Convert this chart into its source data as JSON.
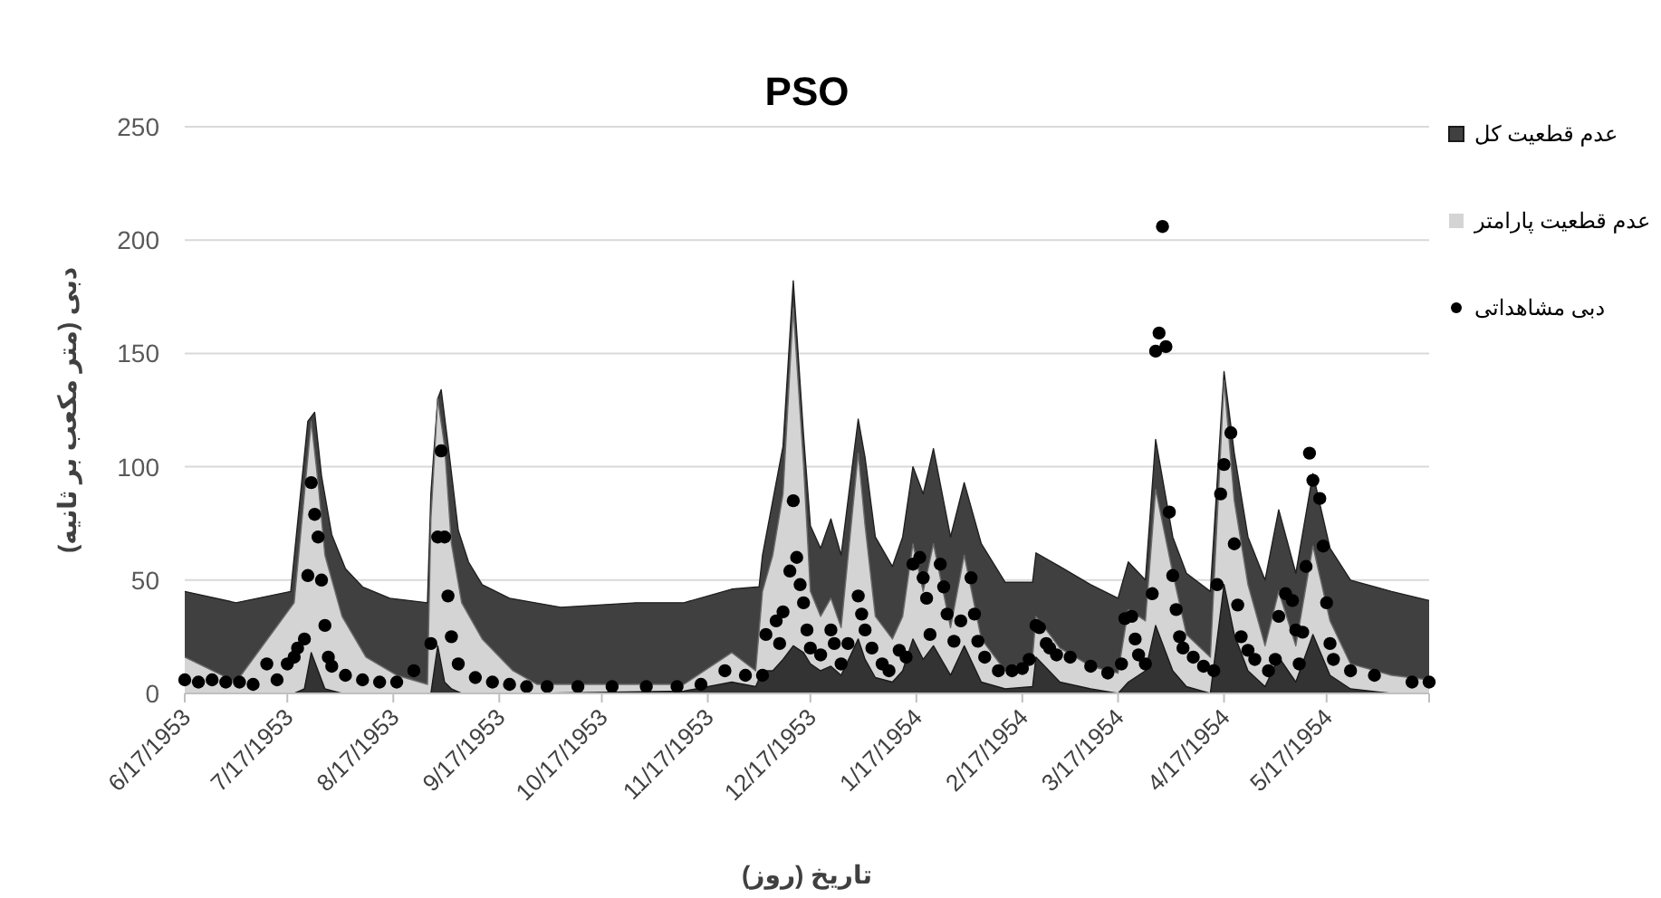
{
  "chart_data": {
    "type": "area",
    "title": "PSO",
    "xlabel": "تاریخ (روز)",
    "ylabel": "دبی (متر مکعب بر ثانیه)",
    "xlim": [
      "1953-06-17",
      "1954-06-16"
    ],
    "ylim": [
      0,
      250
    ],
    "yticks": [
      0,
      50,
      100,
      150,
      200,
      250
    ],
    "xticks": [
      {
        "value": "1953-06-17",
        "label": "6/17/1953"
      },
      {
        "value": "1953-07-17",
        "label": "7/17/1953"
      },
      {
        "value": "1953-08-17",
        "label": "8/17/1953"
      },
      {
        "value": "1953-09-17",
        "label": "9/17/1953"
      },
      {
        "value": "1953-10-17",
        "label": "10/17/1953"
      },
      {
        "value": "1953-11-17",
        "label": "11/17/1953"
      },
      {
        "value": "1953-12-17",
        "label": "12/17/1953"
      },
      {
        "value": "1954-01-17",
        "label": "1/17/1954"
      },
      {
        "value": "1954-02-17",
        "label": "2/17/1954"
      },
      {
        "value": "1954-03-17",
        "label": "3/17/1954"
      },
      {
        "value": "1954-04-17",
        "label": "4/17/1954"
      },
      {
        "value": "1954-05-17",
        "label": "5/17/1954"
      }
    ],
    "grid": "y",
    "legend": "right",
    "series": [
      {
        "name": "عدم قطعیت کل",
        "color": "#404040",
        "x": [
          "1953-06-17",
          "1953-07-02",
          "1953-07-18",
          "1953-07-21",
          "1953-07-23",
          "1953-07-25",
          "1953-07-26",
          "1953-07-27",
          "1953-07-30",
          "1953-08-03",
          "1953-08-08",
          "1953-08-16",
          "1953-08-27",
          "1953-08-28",
          "1953-08-30",
          "1953-08-31",
          "1953-09-02",
          "1953-09-05",
          "1953-09-08",
          "1953-09-12",
          "1953-09-20",
          "1953-10-05",
          "1953-10-27",
          "1953-11-10",
          "1953-11-24",
          "1953-12-02",
          "1953-12-03",
          "1953-12-06",
          "1953-12-09",
          "1953-12-12",
          "1953-12-15",
          "1953-12-17",
          "1953-12-20",
          "1953-12-23",
          "1953-12-26",
          "1953-12-31",
          "1954-01-02",
          "1954-01-05",
          "1954-01-10",
          "1954-01-13",
          "1954-01-16",
          "1954-01-19",
          "1954-01-22",
          "1954-01-27",
          "1954-01-31",
          "1954-02-05",
          "1954-02-12",
          "1954-02-20",
          "1954-02-21",
          "1954-02-28",
          "1954-03-09",
          "1954-03-17",
          "1954-03-20",
          "1954-03-25",
          "1954-03-28",
          "1954-04-02",
          "1954-04-06",
          "1954-04-13",
          "1954-04-17",
          "1954-04-20",
          "1954-04-24",
          "1954-04-29",
          "1954-05-03",
          "1954-05-08",
          "1954-05-13",
          "1954-05-18",
          "1954-05-24",
          "1954-06-05",
          "1954-06-16"
        ],
        "values": [
          45,
          40,
          45,
          90,
          120,
          124,
          110,
          96,
          70,
          55,
          47,
          42,
          40,
          88,
          130,
          134,
          110,
          72,
          58,
          48,
          42,
          38,
          40,
          40,
          46,
          47,
          61,
          85,
          109,
          182,
          114,
          74,
          64,
          77,
          61,
          121,
          104,
          69,
          56,
          69,
          100,
          88,
          108,
          69,
          93,
          66,
          49,
          49,
          62,
          56,
          48,
          42,
          58,
          50,
          112,
          69,
          53,
          45,
          142,
          106,
          69,
          50,
          81,
          53,
          97,
          64,
          50,
          45,
          41
        ]
      },
      {
        "name": "عدم قطعیت پارامتر",
        "color": "#d4d4d4",
        "x": [
          "1953-06-17",
          "1953-07-02",
          "1953-07-19",
          "1953-07-22",
          "1953-07-24",
          "1953-07-26",
          "1953-07-28",
          "1953-08-02",
          "1953-08-09",
          "1953-08-18",
          "1953-08-27",
          "1953-08-28",
          "1953-08-30",
          "1953-09-01",
          "1953-09-03",
          "1953-09-06",
          "1953-09-12",
          "1953-09-21",
          "1953-09-28",
          "1953-11-10",
          "1953-11-24",
          "1953-12-01",
          "1953-12-03",
          "1953-12-06",
          "1953-12-09",
          "1953-12-12",
          "1953-12-15",
          "1953-12-17",
          "1953-12-20",
          "1953-12-23",
          "1953-12-26",
          "1953-12-31",
          "1954-01-02",
          "1954-01-05",
          "1954-01-10",
          "1954-01-13",
          "1954-01-16",
          "1954-01-19",
          "1954-01-22",
          "1954-01-27",
          "1954-01-31",
          "1954-02-05",
          "1954-02-12",
          "1954-02-20",
          "1954-02-21",
          "1954-02-28",
          "1954-03-09",
          "1954-03-17",
          "1954-03-20",
          "1954-03-25",
          "1954-03-28",
          "1954-04-02",
          "1954-04-06",
          "1954-04-13",
          "1954-04-17",
          "1954-04-20",
          "1954-04-24",
          "1954-04-29",
          "1954-05-03",
          "1954-05-08",
          "1954-05-13",
          "1954-05-18",
          "1954-05-24",
          "1954-06-05",
          "1954-06-16"
        ],
        "values": [
          16,
          5,
          40,
          88,
          120,
          93,
          61,
          34,
          16,
          8,
          4,
          77,
          130,
          109,
          66,
          40,
          24,
          10,
          4,
          4,
          18,
          10,
          45,
          61,
          88,
          170,
          101,
          45,
          34,
          42,
          29,
          106,
          74,
          34,
          24,
          34,
          66,
          45,
          66,
          29,
          61,
          24,
          10,
          16,
          34,
          20,
          12,
          9,
          37,
          32,
          90,
          53,
          26,
          16,
          138,
          85,
          48,
          21,
          45,
          21,
          65,
          32,
          13,
          8,
          6
        ]
      },
      {
        "color": "#333333",
        "x": [
          "1953-06-17",
          "1953-07-02",
          "1953-07-19",
          "1953-07-22",
          "1953-07-24",
          "1953-07-26",
          "1953-07-28",
          "1953-08-02",
          "1953-08-09",
          "1953-08-18",
          "1953-08-27",
          "1953-08-28",
          "1953-08-30",
          "1953-09-01",
          "1953-09-03",
          "1953-09-06",
          "1953-09-12",
          "1953-09-21",
          "1953-09-28",
          "1953-11-10",
          "1953-11-24",
          "1953-12-01",
          "1953-12-03",
          "1953-12-06",
          "1953-12-09",
          "1953-12-12",
          "1953-12-15",
          "1953-12-17",
          "1953-12-20",
          "1953-12-23",
          "1953-12-26",
          "1953-12-31",
          "1954-01-02",
          "1954-01-05",
          "1954-01-10",
          "1954-01-13",
          "1954-01-16",
          "1954-01-19",
          "1954-01-22",
          "1954-01-27",
          "1954-01-31",
          "1954-02-05",
          "1954-02-12",
          "1954-02-20",
          "1954-02-21",
          "1954-02-28",
          "1954-03-09",
          "1954-03-17",
          "1954-03-20",
          "1954-03-25",
          "1954-03-28",
          "1954-04-02",
          "1954-04-06",
          "1954-04-13",
          "1954-04-17",
          "1954-04-20",
          "1954-04-24",
          "1954-04-29",
          "1954-05-03",
          "1954-05-08",
          "1954-05-13",
          "1954-05-18",
          "1954-05-24",
          "1954-06-05",
          "1954-06-16"
        ],
        "values": [
          0,
          0,
          0,
          2,
          18,
          10,
          2,
          0,
          0,
          0,
          0,
          0,
          21,
          5,
          2,
          0,
          0,
          0,
          0,
          1,
          5,
          3,
          10,
          10,
          15,
          21,
          18,
          13,
          10,
          12,
          8,
          24,
          15,
          7,
          5,
          10,
          24,
          15,
          21,
          8,
          21,
          5,
          2,
          3,
          16,
          5,
          2,
          0,
          5,
          10,
          30,
          10,
          3,
          0,
          48,
          26,
          10,
          3,
          16,
          5,
          26,
          8,
          2,
          0,
          0
        ]
      },
      {
        "name": "دبی مشاهداتی",
        "type": "scatter",
        "color": "#000000",
        "marker": "circle",
        "x": [
          "1953-06-17",
          "1953-06-21",
          "1953-06-25",
          "1953-06-29",
          "1953-07-03",
          "1953-07-07",
          "1953-07-11",
          "1953-07-14",
          "1953-07-17",
          "1953-07-19",
          "1953-07-20",
          "1953-07-22",
          "1953-07-23",
          "1953-07-24",
          "1953-07-25",
          "1953-07-26",
          "1953-07-27",
          "1953-07-28",
          "1953-07-29",
          "1953-07-30",
          "1953-08-03",
          "1953-08-08",
          "1953-08-13",
          "1953-08-18",
          "1953-08-23",
          "1953-08-28",
          "1953-08-30",
          "1953-08-31",
          "1953-09-01",
          "1953-09-02",
          "1953-09-03",
          "1953-09-05",
          "1953-09-10",
          "1953-09-15",
          "1953-09-20",
          "1953-09-25",
          "1953-10-01",
          "1953-10-10",
          "1953-10-20",
          "1953-10-30",
          "1953-11-08",
          "1953-11-15",
          "1953-11-22",
          "1953-11-28",
          "1953-12-03",
          "1953-12-04",
          "1953-12-07",
          "1953-12-08",
          "1953-12-09",
          "1953-12-11",
          "1953-12-12",
          "1953-12-13",
          "1953-12-14",
          "1953-12-15",
          "1953-12-16",
          "1953-12-17",
          "1953-12-20",
          "1953-12-23",
          "1953-12-24",
          "1953-12-26",
          "1953-12-28",
          "1953-12-31",
          "1954-01-01",
          "1954-01-02",
          "1954-01-04",
          "1954-01-07",
          "1954-01-09",
          "1954-01-12",
          "1954-01-14",
          "1954-01-16",
          "1954-01-18",
          "1954-01-19",
          "1954-01-20",
          "1954-01-21",
          "1954-01-24",
          "1954-01-25",
          "1954-01-26",
          "1954-01-28",
          "1954-01-30",
          "1954-02-02",
          "1954-02-03",
          "1954-02-04",
          "1954-02-06",
          "1954-02-10",
          "1954-02-14",
          "1954-02-17",
          "1954-02-19",
          "1954-02-21",
          "1954-02-22",
          "1954-02-24",
          "1954-02-25",
          "1954-02-27",
          "1954-03-03",
          "1954-03-09",
          "1954-03-14",
          "1954-03-18",
          "1954-03-19",
          "1954-03-21",
          "1954-03-22",
          "1954-03-23",
          "1954-03-25",
          "1954-03-27",
          "1954-03-28",
          "1954-03-29",
          "1954-03-30",
          "1954-03-31",
          "1954-04-01",
          "1954-04-02",
          "1954-04-03",
          "1954-04-04",
          "1954-04-05",
          "1954-04-08",
          "1954-04-11",
          "1954-04-14",
          "1954-04-15",
          "1954-04-16",
          "1954-04-17",
          "1954-04-19",
          "1954-04-20",
          "1954-04-21",
          "1954-04-22",
          "1954-04-24",
          "1954-04-26",
          "1954-04-30",
          "1954-05-02",
          "1954-05-03",
          "1954-05-05",
          "1954-05-07",
          "1954-05-08",
          "1954-05-09",
          "1954-05-10",
          "1954-05-11",
          "1954-05-12",
          "1954-05-13",
          "1954-05-15",
          "1954-05-16",
          "1954-05-17",
          "1954-05-18",
          "1954-05-19",
          "1954-05-24",
          "1954-05-31",
          "1954-06-11",
          "1954-06-16"
        ],
        "values": [
          6,
          5,
          6,
          5,
          5,
          4,
          13,
          6,
          13,
          16,
          20,
          24,
          52,
          93,
          79,
          69,
          50,
          30,
          16,
          12,
          8,
          6,
          5,
          5,
          10,
          22,
          69,
          107,
          69,
          43,
          25,
          13,
          7,
          5,
          4,
          3,
          3,
          3,
          3,
          3,
          3,
          4,
          10,
          8,
          8,
          26,
          32,
          22,
          36,
          54,
          85,
          60,
          48,
          40,
          28,
          20,
          17,
          28,
          22,
          13,
          22,
          43,
          35,
          28,
          20,
          13,
          10,
          19,
          16,
          57,
          60,
          51,
          42,
          26,
          57,
          47,
          35,
          23,
          32,
          51,
          35,
          23,
          16,
          10,
          10,
          11,
          15,
          30,
          29,
          22,
          20,
          17,
          16,
          12,
          9,
          13,
          33,
          34,
          24,
          17,
          13,
          44,
          151,
          159,
          206,
          153,
          80,
          52,
          37,
          25,
          20,
          16,
          12,
          10,
          48,
          88,
          101,
          115,
          66,
          39,
          25,
          19,
          15,
          10,
          15,
          34,
          44,
          41,
          28,
          13,
          27,
          56,
          106,
          94,
          86,
          65,
          40,
          22,
          15,
          10,
          8,
          5,
          5
        ]
      }
    ]
  }
}
